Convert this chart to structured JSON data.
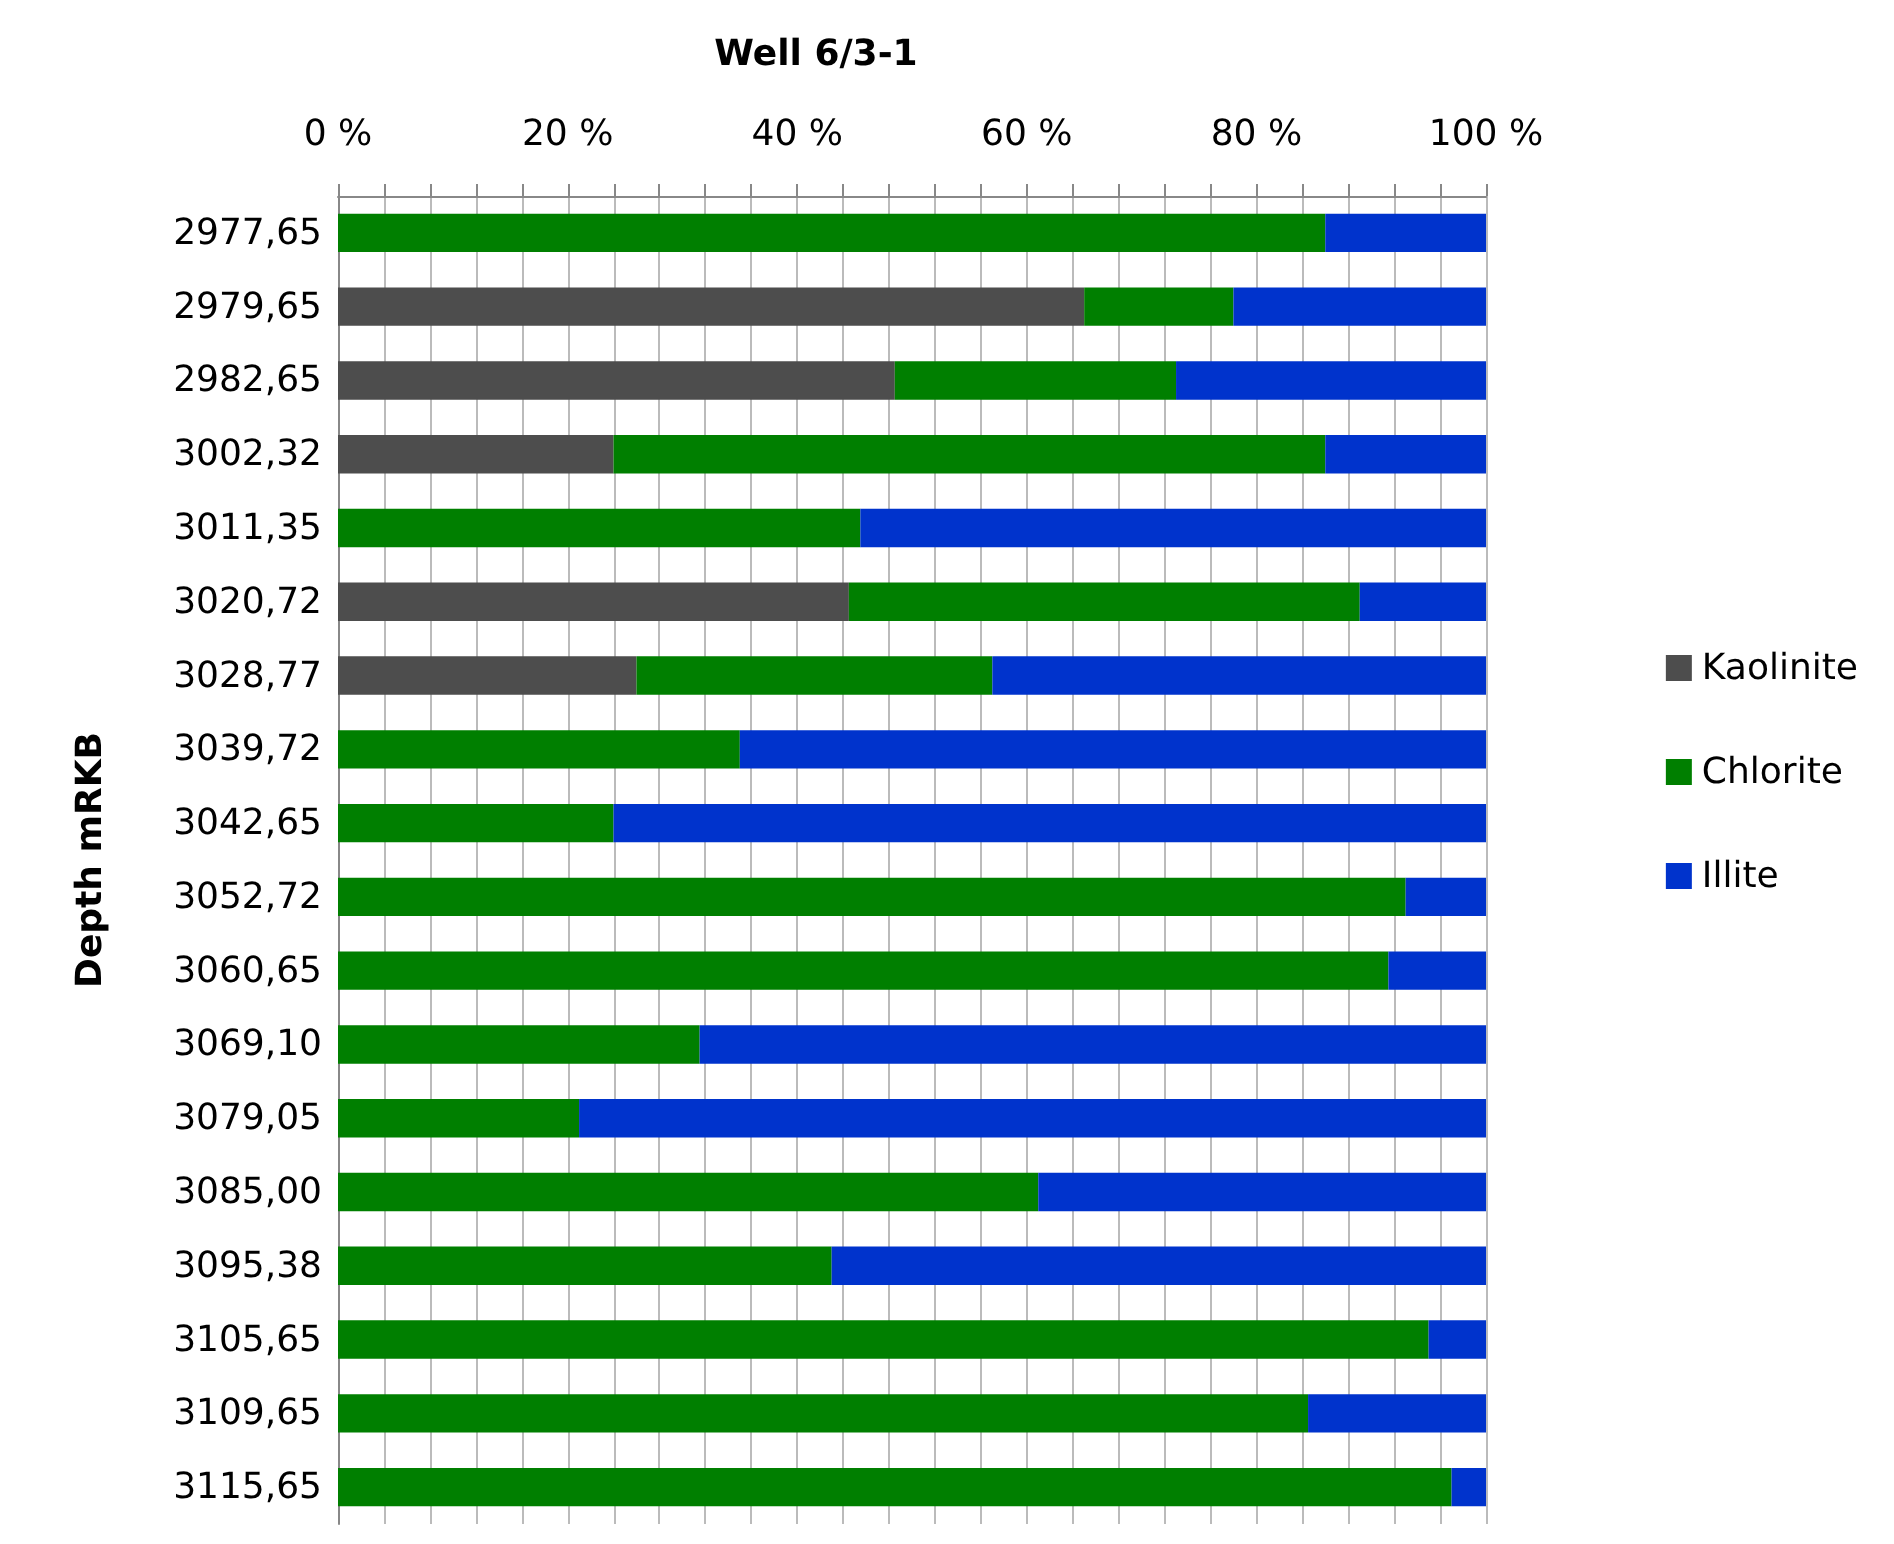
{
  "chart_data": {
    "type": "bar",
    "orientation": "horizontal",
    "stacked": true,
    "title": "Well 6/3-1",
    "ylabel": "Depth mRKB",
    "categories": [
      "2977,65",
      "2979,65",
      "2982,65",
      "3002,32",
      "3011,35",
      "3020,72",
      "3028,77",
      "3039,72",
      "3042,65",
      "3052,72",
      "3060,65",
      "3069,10",
      "3079,05",
      "3085,00",
      "3095,38",
      "3105,65",
      "3109,65",
      "3115,65"
    ],
    "series": [
      {
        "name": "Kaolinite",
        "color": "#4d4d4d",
        "values": [
          0,
          65,
          48.5,
          24,
          0,
          44.5,
          26,
          0,
          0,
          0,
          0,
          0,
          0,
          0,
          0,
          0,
          0,
          0
        ]
      },
      {
        "name": "Chlorite",
        "color": "#007f00",
        "values": [
          86,
          13,
          24.5,
          62,
          45.5,
          44.5,
          31,
          35,
          24,
          93,
          91.5,
          31.5,
          21,
          61,
          43,
          95,
          84.5,
          97
        ]
      },
      {
        "name": "Illite",
        "color": "#0033cc",
        "values": [
          14,
          22,
          27,
          14,
          54.5,
          11,
          43,
          65,
          76,
          7,
          8.5,
          68.5,
          79,
          39,
          57,
          5,
          15.5,
          3
        ]
      }
    ],
    "xlim": [
      0,
      100
    ],
    "xticks": [
      {
        "value": 0,
        "label": "0 %"
      },
      {
        "value": 4,
        "label": null
      },
      {
        "value": 8,
        "label": null
      },
      {
        "value": 12,
        "label": null
      },
      {
        "value": 16,
        "label": null
      },
      {
        "value": 20,
        "label": "20 %"
      },
      {
        "value": 24,
        "label": null
      },
      {
        "value": 28,
        "label": null
      },
      {
        "value": 32,
        "label": null
      },
      {
        "value": 36,
        "label": null
      },
      {
        "value": 40,
        "label": "40 %"
      },
      {
        "value": 44,
        "label": null
      },
      {
        "value": 48,
        "label": null
      },
      {
        "value": 52,
        "label": null
      },
      {
        "value": 56,
        "label": null
      },
      {
        "value": 60,
        "label": "60 %"
      },
      {
        "value": 64,
        "label": null
      },
      {
        "value": 68,
        "label": null
      },
      {
        "value": 72,
        "label": null
      },
      {
        "value": 76,
        "label": null
      },
      {
        "value": 80,
        "label": "80 %"
      },
      {
        "value": 84,
        "label": null
      },
      {
        "value": 88,
        "label": null
      },
      {
        "value": 92,
        "label": null
      },
      {
        "value": 96,
        "label": null
      },
      {
        "value": 100,
        "label": "100 %"
      }
    ],
    "grid": "x",
    "legend": "right"
  }
}
